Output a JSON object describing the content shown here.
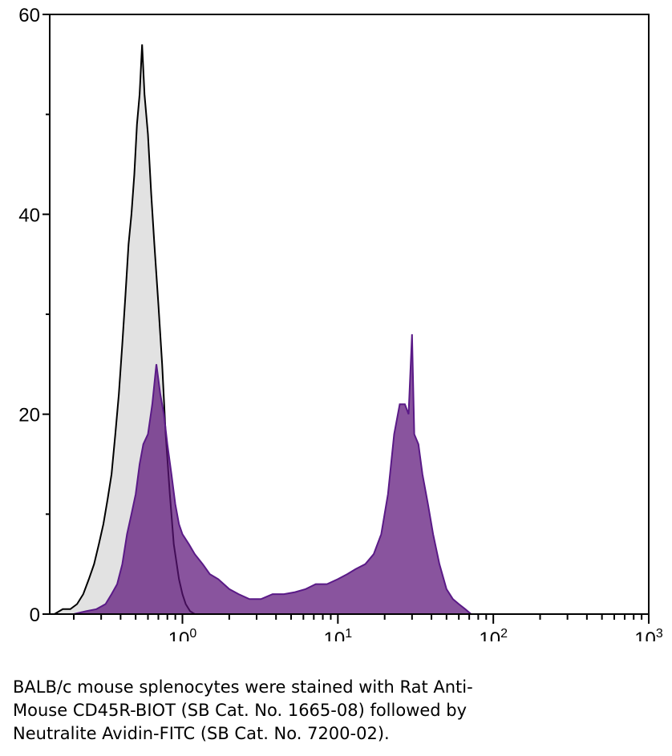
{
  "chart_data": {
    "type": "area",
    "x_scale": "log",
    "xlim": [
      0.14,
      1000
    ],
    "ylim": [
      0,
      60
    ],
    "xlabel": "",
    "ylabel": "",
    "x_ticks": [
      {
        "value": 1,
        "base": "10",
        "exp": "0"
      },
      {
        "value": 10,
        "base": "10",
        "exp": "1"
      },
      {
        "value": 100,
        "base": "10",
        "exp": "2"
      },
      {
        "value": 1000,
        "base": "10",
        "exp": "3"
      }
    ],
    "y_ticks": [
      0,
      20,
      40,
      60
    ],
    "grid": false,
    "series": [
      {
        "fill": "#e2e2e2",
        "stroke": "#000000",
        "x": [
          0.15,
          0.17,
          0.19,
          0.21,
          0.23,
          0.25,
          0.27,
          0.29,
          0.31,
          0.33,
          0.35,
          0.37,
          0.39,
          0.41,
          0.43,
          0.45,
          0.47,
          0.49,
          0.51,
          0.53,
          0.55,
          0.57,
          0.6,
          0.63,
          0.66,
          0.7,
          0.74,
          0.78,
          0.83,
          0.88,
          0.95,
          1.0,
          1.05,
          1.12,
          1.2
        ],
        "values": [
          0,
          0.5,
          0.5,
          1,
          2,
          3.5,
          5,
          7,
          9,
          11.5,
          14,
          18,
          22,
          27,
          32,
          37,
          40,
          44,
          49,
          52,
          57,
          52,
          48,
          42,
          37,
          31,
          25,
          18,
          12,
          7,
          3.5,
          2,
          1,
          0.3,
          0
        ]
      },
      {
        "fill": "#5b1278",
        "stroke": "#5a1a87",
        "x": [
          0.2,
          0.24,
          0.28,
          0.32,
          0.35,
          0.38,
          0.41,
          0.44,
          0.47,
          0.5,
          0.53,
          0.56,
          0.6,
          0.64,
          0.68,
          0.72,
          0.76,
          0.8,
          0.85,
          0.9,
          0.95,
          1.0,
          1.1,
          1.2,
          1.35,
          1.5,
          1.7,
          2.0,
          2.3,
          2.7,
          3.2,
          3.8,
          4.5,
          5.3,
          6.2,
          7.2,
          8.5,
          10,
          11.5,
          13,
          15,
          17,
          19,
          21,
          23,
          25,
          27,
          28.5,
          30,
          31,
          33,
          35,
          38,
          41,
          45,
          50,
          55,
          60,
          66,
          72
        ],
        "values": [
          0,
          0.3,
          0.5,
          1,
          2,
          3,
          5,
          8,
          10,
          12,
          15,
          17,
          18,
          21,
          25,
          22,
          20,
          17,
          14,
          11,
          9,
          8,
          7,
          6,
          5,
          4,
          3.5,
          2.5,
          2,
          1.5,
          1.5,
          2,
          2,
          2.2,
          2.5,
          3,
          3,
          3.5,
          4,
          4.5,
          5,
          6,
          8,
          12,
          18,
          21,
          21,
          20,
          28,
          18,
          17,
          14,
          11,
          8,
          5,
          2.5,
          1.5,
          1,
          0.5,
          0
        ]
      }
    ]
  },
  "caption": {
    "lines": [
      "BALB/c mouse splenocytes were stained with Rat Anti-",
      "Mouse CD45R-BIOT (SB Cat. No. 1665-08) followed by",
      "Neutralite Avidin-FITC (SB Cat. No. 7200-02)."
    ]
  }
}
